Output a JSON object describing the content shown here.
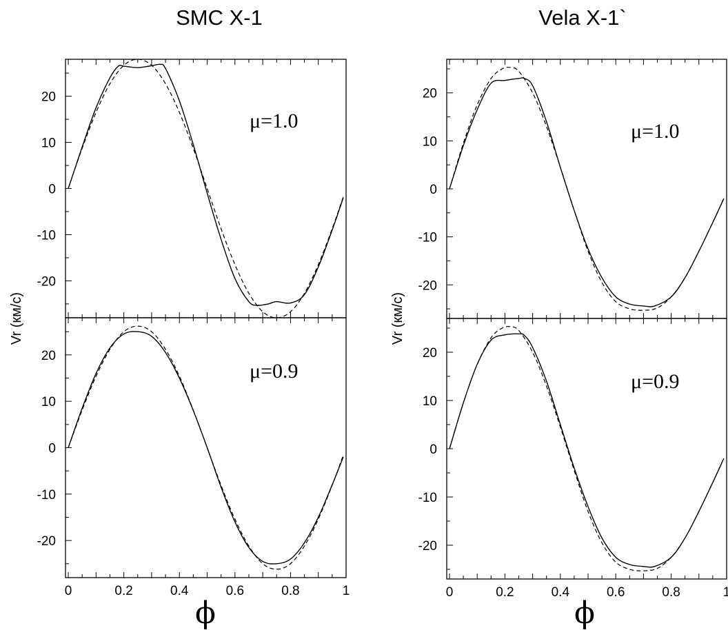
{
  "chart_data": [
    {
      "type": "line",
      "title": "SMC X-1",
      "ylabel": "Vr (км/с)",
      "xlabel": "ϕ",
      "xlim": [
        -0.01,
        1.0
      ],
      "xticks": [
        "0",
        "0.2",
        "0.4",
        "0.6",
        "0.8",
        "1"
      ],
      "panels": [
        {
          "annotation": "μ=1.0",
          "ylim": [
            -28,
            28
          ],
          "yticks": [
            "20",
            "10",
            "0",
            "-10",
            "-20"
          ],
          "series": [
            {
              "style": "solid",
              "x": [
                0,
                0.05,
                0.1,
                0.15,
                0.18,
                0.2,
                0.25,
                0.3,
                0.33,
                0.35,
                0.4,
                0.45,
                0.5,
                0.55,
                0.6,
                0.65,
                0.68,
                0.72,
                0.75,
                0.8,
                0.85,
                0.9,
                0.95,
                0.99
              ],
              "y": [
                0,
                9,
                17.5,
                24,
                26.5,
                26.5,
                26.2,
                26.6,
                26.9,
                26,
                19,
                9.5,
                -1,
                -11,
                -19.5,
                -24.5,
                -25.3,
                -25,
                -24.5,
                -24.8,
                -23,
                -17,
                -9,
                -2
              ]
            },
            {
              "style": "dashed",
              "x": [
                0,
                0.05,
                0.1,
                0.15,
                0.2,
                0.25,
                0.3,
                0.35,
                0.4,
                0.45,
                0.5,
                0.55,
                0.6,
                0.65,
                0.7,
                0.75,
                0.8,
                0.85,
                0.9,
                0.95,
                0.99
              ],
              "y": [
                0,
                8.7,
                16.5,
                22.7,
                26.7,
                28,
                26.7,
                22.7,
                16.5,
                8.7,
                0,
                -8.7,
                -16.5,
                -22.7,
                -26.7,
                -28,
                -26.7,
                -22.7,
                -16.5,
                -8.7,
                -1.8
              ]
            }
          ]
        },
        {
          "annotation": "μ=0.9",
          "ylim": [
            -28,
            28
          ],
          "yticks": [
            "20",
            "10",
            "0",
            "-10",
            "-20"
          ],
          "series": [
            {
              "style": "solid",
              "x": [
                0,
                0.05,
                0.1,
                0.15,
                0.2,
                0.25,
                0.3,
                0.35,
                0.4,
                0.45,
                0.5,
                0.55,
                0.6,
                0.65,
                0.7,
                0.75,
                0.8,
                0.85,
                0.9,
                0.95,
                0.99
              ],
              "y": [
                0,
                8.5,
                16,
                21.5,
                24.5,
                25,
                24,
                20.5,
                15,
                8,
                0,
                -8.5,
                -16,
                -21.5,
                -24.5,
                -25,
                -24,
                -20.5,
                -15,
                -8,
                -2
              ]
            },
            {
              "style": "dashed",
              "x": [
                0,
                0.05,
                0.1,
                0.15,
                0.2,
                0.25,
                0.3,
                0.35,
                0.4,
                0.45,
                0.5,
                0.55,
                0.6,
                0.65,
                0.7,
                0.75,
                0.8,
                0.85,
                0.9,
                0.95,
                0.99
              ],
              "y": [
                0,
                8.1,
                15.4,
                21.2,
                25,
                26.2,
                25,
                21.2,
                15.4,
                8.1,
                0,
                -8.1,
                -15.4,
                -21.2,
                -25,
                -26.2,
                -25,
                -21.2,
                -15.4,
                -8.1,
                -1.6
              ]
            }
          ]
        }
      ]
    },
    {
      "type": "line",
      "title": "Vela X-1`",
      "ylabel": "Vr (км/с)",
      "xlabel": "ϕ",
      "xlim": [
        -0.01,
        1.0
      ],
      "xticks": [
        "0",
        "0.2",
        "0.4",
        "0.6",
        "0.8",
        "1"
      ],
      "panels": [
        {
          "annotation": "μ=1.0",
          "ylim": [
            -27,
            27
          ],
          "yticks": [
            "20",
            "10",
            "0",
            "-10",
            "-20"
          ],
          "series": [
            {
              "style": "solid",
              "x": [
                0,
                0.05,
                0.1,
                0.15,
                0.2,
                0.25,
                0.27,
                0.3,
                0.35,
                0.4,
                0.45,
                0.5,
                0.55,
                0.6,
                0.65,
                0.7,
                0.74,
                0.8,
                0.85,
                0.9,
                0.95,
                0.99
              ],
              "y": [
                0,
                9,
                16.5,
                22,
                22.6,
                23,
                23,
                21.5,
                14,
                4.5,
                -4.5,
                -12.5,
                -18.5,
                -22.5,
                -24,
                -24.4,
                -24.4,
                -22.5,
                -18.5,
                -13,
                -7,
                -2
              ]
            },
            {
              "style": "dashed",
              "x": [
                0,
                0.05,
                0.1,
                0.15,
                0.19,
                0.22,
                0.25,
                0.3,
                0.35,
                0.4,
                0.45,
                0.5,
                0.55,
                0.6,
                0.65,
                0.7,
                0.75,
                0.8,
                0.85,
                0.9,
                0.95,
                0.99
              ],
              "y": [
                0,
                9.5,
                17.5,
                23,
                25,
                25.3,
                24.5,
                20,
                13,
                4.5,
                -4.5,
                -13,
                -19.5,
                -23.5,
                -25,
                -25.3,
                -24.8,
                -22.5,
                -18.5,
                -13,
                -7,
                -2
              ]
            }
          ]
        },
        {
          "annotation": "μ=0.9",
          "ylim": [
            -27,
            27
          ],
          "yticks": [
            "20",
            "10",
            "0",
            "-10",
            "-20"
          ],
          "series": [
            {
              "style": "solid",
              "x": [
                0,
                0.05,
                0.1,
                0.15,
                0.2,
                0.25,
                0.27,
                0.3,
                0.35,
                0.4,
                0.45,
                0.5,
                0.55,
                0.6,
                0.65,
                0.7,
                0.74,
                0.8,
                0.85,
                0.9,
                0.95,
                0.99
              ],
              "y": [
                0,
                9.5,
                17.5,
                22.5,
                23.6,
                23.8,
                23.5,
                21,
                14,
                5,
                -4,
                -12,
                -18.5,
                -22.5,
                -24,
                -24.4,
                -24.4,
                -22.5,
                -18.5,
                -13,
                -7,
                -2
              ]
            },
            {
              "style": "dashed",
              "x": [
                0,
                0.05,
                0.1,
                0.15,
                0.19,
                0.22,
                0.25,
                0.3,
                0.35,
                0.4,
                0.45,
                0.5,
                0.55,
                0.6,
                0.65,
                0.7,
                0.75,
                0.8,
                0.85,
                0.9,
                0.95,
                0.99
              ],
              "y": [
                0,
                9.5,
                17.5,
                23,
                25,
                25.3,
                24.5,
                20,
                13,
                4.5,
                -4.5,
                -13,
                -19.5,
                -23.5,
                -25,
                -25.3,
                -24.8,
                -22.5,
                -18.5,
                -13,
                -7,
                -2
              ]
            }
          ]
        }
      ]
    }
  ]
}
